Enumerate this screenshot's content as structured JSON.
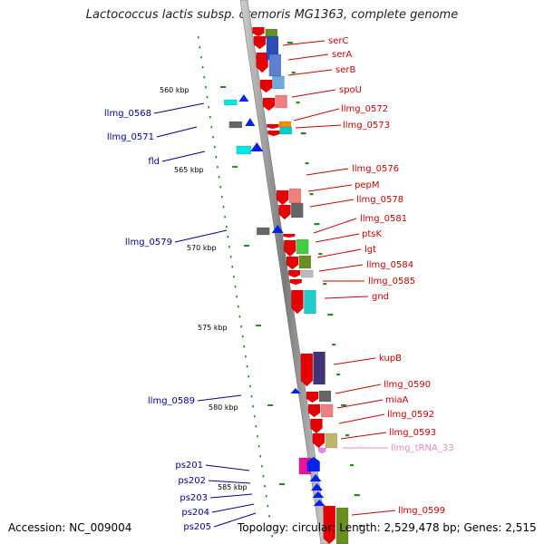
{
  "title": "Lactococcus lactis subsp. cremoris MG1363, complete genome",
  "footer": {
    "accession": "Accession: NC_009004",
    "topology": "Topology: circular; Length: 2,529,478 bp; Genes: 2,515"
  },
  "scale_labels": [
    "560 kbp",
    "565 kbp",
    "570 kbp",
    "575 kbp",
    "580 kbp",
    "585 kbp"
  ],
  "colors": {
    "backbone": "#8a8a8a",
    "right_label": "#cc0000",
    "left_label": "#000099",
    "trna_label": "#ee88cc",
    "tick": "#228b22"
  },
  "right_labels": [
    "serC",
    "serA",
    "serB",
    "spoU",
    "llmg_0572",
    "llmg_0573",
    "llmg_0576",
    "pepM",
    "llmg_0578",
    "llmg_0581",
    "ptsK",
    "lgt",
    "llmg_0584",
    "llmg_0585",
    "gnd",
    "kupB",
    "llmg_0590",
    "miaA",
    "llmg_0592",
    "llmg_0593",
    "llmg_tRNA_33",
    "llmg_0599"
  ],
  "left_labels": [
    "llmg_0568",
    "llmg_0571",
    "fld",
    "llmg_0579",
    "llmg_0589",
    "ps201",
    "ps202",
    "ps203",
    "ps204",
    "ps205"
  ]
}
